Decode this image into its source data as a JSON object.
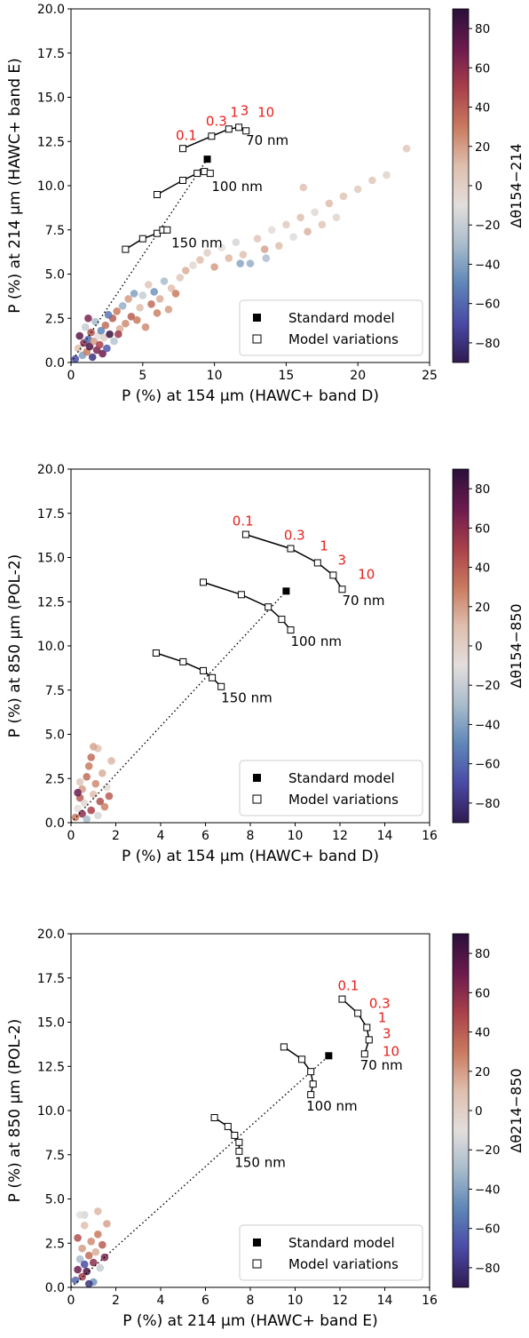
{
  "colorbar": {
    "ticks": [
      "80",
      "60",
      "40",
      "20",
      "0",
      "−20",
      "−40",
      "−60",
      "−80"
    ],
    "range": [
      -90,
      90
    ],
    "stops": [
      "#2a0f3a",
      "#6b1a4e",
      "#a8404a",
      "#c97a5e",
      "#dfbfae",
      "#e3dedc",
      "#a8bccc",
      "#5e86b8",
      "#4a4aa6",
      "#2f1a50"
    ]
  },
  "legend": {
    "standard": "Standard model",
    "variations": "Model variations"
  },
  "chart_data": [
    {
      "type": "scatter",
      "xlabel": "P (%) at 154 μm (HAWC+ band D)",
      "ylabel": "P (%) at 214 μm (HAWC+ band E)",
      "colorbar_label": "Δθ154−214",
      "xlim": [
        0,
        25
      ],
      "ylim": [
        0,
        20
      ],
      "xticks": [
        0,
        5,
        10,
        15,
        20,
        25
      ],
      "xtick_labels": [
        "0",
        "5",
        "10",
        "15",
        "20",
        "25"
      ],
      "yticks": [
        0,
        2.5,
        5,
        7.5,
        10,
        12.5,
        15,
        17.5,
        20
      ],
      "ytick_labels": [
        "0.0",
        "2.5",
        "5.0",
        "7.5",
        "10.0",
        "12.5",
        "15.0",
        "17.5",
        "20.0"
      ],
      "standard_model": [
        9.5,
        11.5
      ],
      "dotted_line": [
        [
          0,
          0
        ],
        [
          9.5,
          11.5
        ]
      ],
      "model_curves": [
        {
          "size": "70 nm",
          "points": [
            [
              7.8,
              12.1
            ],
            [
              9.8,
              12.8
            ],
            [
              11.0,
              13.2
            ],
            [
              11.7,
              13.3
            ],
            [
              12.2,
              13.1
            ]
          ]
        },
        {
          "size": "100 nm",
          "points": [
            [
              6.0,
              9.5
            ],
            [
              7.8,
              10.3
            ],
            [
              8.8,
              10.7
            ],
            [
              9.3,
              10.8
            ],
            [
              9.7,
              10.7
            ]
          ]
        },
        {
          "size": "150 nm",
          "points": [
            [
              3.8,
              6.4
            ],
            [
              5.0,
              7.0
            ],
            [
              6.0,
              7.3
            ],
            [
              6.4,
              7.5
            ],
            [
              6.7,
              7.5
            ]
          ]
        }
      ],
      "size_label_positions": [
        [
          12.2,
          12.3
        ],
        [
          9.8,
          9.7
        ],
        [
          7.0,
          6.5
        ]
      ],
      "grain_labels": [
        {
          "text": "0.1",
          "x": 7.3,
          "y": 12.6
        },
        {
          "text": "0.3",
          "x": 9.4,
          "y": 13.4
        },
        {
          "text": "1",
          "x": 11.1,
          "y": 13.9
        },
        {
          "text": "3",
          "x": 11.8,
          "y": 14.0
        },
        {
          "text": "10",
          "x": 13.0,
          "y": 13.9
        }
      ],
      "observations": [
        [
          0.3,
          0.2,
          -70
        ],
        [
          0.5,
          0.8,
          10
        ],
        [
          0.6,
          1.5,
          75
        ],
        [
          0.8,
          0.4,
          -40
        ],
        [
          0.9,
          1.1,
          60
        ],
        [
          1.0,
          2.0,
          -20
        ],
        [
          1.1,
          0.6,
          30
        ],
        [
          1.2,
          1.3,
          -60
        ],
        [
          1.3,
          0.9,
          80
        ],
        [
          1.4,
          1.7,
          45
        ],
        [
          1.5,
          0.3,
          -80
        ],
        [
          1.6,
          1.2,
          20
        ],
        [
          1.7,
          2.3,
          -30
        ],
        [
          1.8,
          0.7,
          65
        ],
        [
          1.9,
          1.5,
          -10
        ],
        [
          2.0,
          1.0,
          50
        ],
        [
          2.1,
          1.8,
          -50
        ],
        [
          2.2,
          0.5,
          70
        ],
        [
          2.3,
          1.4,
          0
        ],
        [
          2.4,
          2.1,
          35
        ],
        [
          2.5,
          0.8,
          -65
        ],
        [
          2.7,
          1.6,
          85
        ],
        [
          2.9,
          2.5,
          40
        ],
        [
          3.0,
          1.2,
          -25
        ],
        [
          3.2,
          2.9,
          30
        ],
        [
          3.4,
          1.9,
          15
        ],
        [
          3.6,
          3.2,
          -35
        ],
        [
          3.8,
          2.2,
          25
        ],
        [
          4.0,
          3.6,
          20
        ],
        [
          4.2,
          2.6,
          40
        ],
        [
          4.4,
          3.9,
          -40
        ],
        [
          4.6,
          2.4,
          30
        ],
        [
          4.8,
          3.1,
          10
        ],
        [
          5.0,
          3.8,
          -20
        ],
        [
          5.2,
          2.0,
          25
        ],
        [
          5.4,
          4.4,
          5
        ],
        [
          5.6,
          3.3,
          35
        ],
        [
          5.8,
          4.0,
          -45
        ],
        [
          6.0,
          2.8,
          28
        ],
        [
          6.2,
          3.6,
          15
        ],
        [
          6.5,
          4.6,
          -30
        ],
        [
          6.8,
          3.0,
          20
        ],
        [
          7.0,
          4.2,
          10
        ],
        [
          7.3,
          3.9,
          30
        ],
        [
          7.6,
          4.8,
          5
        ],
        [
          8.0,
          5.2,
          15
        ],
        [
          8.5,
          5.5,
          -5
        ],
        [
          9.0,
          5.8,
          10
        ],
        [
          9.5,
          6.2,
          0
        ],
        [
          10.0,
          5.4,
          20
        ],
        [
          10.5,
          6.5,
          -10
        ],
        [
          11.0,
          5.9,
          12
        ],
        [
          11.5,
          6.8,
          -15
        ],
        [
          12.0,
          6.1,
          8
        ],
        [
          12.5,
          5.6,
          -35
        ],
        [
          13.0,
          7.0,
          5
        ],
        [
          13.5,
          6.4,
          18
        ],
        [
          14.0,
          7.5,
          -8
        ],
        [
          14.5,
          6.6,
          10
        ],
        [
          15.0,
          7.8,
          3
        ],
        [
          15.5,
          7.1,
          -12
        ],
        [
          16.0,
          8.2,
          9
        ],
        [
          16.5,
          7.4,
          14
        ],
        [
          17.0,
          8.5,
          -6
        ],
        [
          17.5,
          7.8,
          6
        ],
        [
          18.0,
          9.0,
          11
        ],
        [
          18.5,
          8.2,
          -4
        ],
        [
          19.0,
          9.4,
          7
        ],
        [
          20.0,
          9.8,
          2
        ],
        [
          21.0,
          10.3,
          5
        ],
        [
          22.0,
          10.6,
          -2
        ],
        [
          23.4,
          12.1,
          4
        ],
        [
          16.2,
          9.9,
          8
        ],
        [
          13.6,
          5.9,
          -28
        ],
        [
          11.8,
          5.6,
          -38
        ],
        [
          3.3,
          1.6,
          55
        ],
        [
          2.6,
          2.7,
          -55
        ],
        [
          1.2,
          2.5,
          65
        ]
      ]
    },
    {
      "type": "scatter",
      "xlabel": "P (%) at 154 μm (HAWC+ band D)",
      "ylabel": "P (%) at 850 μm (POL-2)",
      "colorbar_label": "Δθ154−850",
      "xlim": [
        0,
        16
      ],
      "ylim": [
        0,
        20
      ],
      "xticks": [
        0,
        2,
        4,
        6,
        8,
        10,
        12,
        14,
        16
      ],
      "xtick_labels": [
        "0",
        "2",
        "4",
        "6",
        "8",
        "10",
        "12",
        "14",
        "16"
      ],
      "yticks": [
        0,
        2.5,
        5,
        7.5,
        10,
        12.5,
        15,
        17.5,
        20
      ],
      "ytick_labels": [
        "0.0",
        "2.5",
        "5.0",
        "7.5",
        "10.0",
        "12.5",
        "15.0",
        "17.5",
        "20.0"
      ],
      "standard_model": [
        9.6,
        13.1
      ],
      "dotted_line": [
        [
          0,
          0
        ],
        [
          9.6,
          13.1
        ]
      ],
      "model_curves": [
        {
          "size": "70 nm",
          "points": [
            [
              7.8,
              16.3
            ],
            [
              9.8,
              15.5
            ],
            [
              11.0,
              14.7
            ],
            [
              11.7,
              14.0
            ],
            [
              12.1,
              13.2
            ]
          ]
        },
        {
          "size": "100 nm",
          "points": [
            [
              5.9,
              13.6
            ],
            [
              7.6,
              12.9
            ],
            [
              8.8,
              12.2
            ],
            [
              9.4,
              11.5
            ],
            [
              9.8,
              10.9
            ]
          ]
        },
        {
          "size": "150 nm",
          "points": [
            [
              3.8,
              9.6
            ],
            [
              5.0,
              9.1
            ],
            [
              5.9,
              8.6
            ],
            [
              6.3,
              8.2
            ],
            [
              6.7,
              7.7
            ]
          ]
        }
      ],
      "size_label_positions": [
        [
          12.1,
          12.3
        ],
        [
          9.8,
          10.0
        ],
        [
          6.7,
          6.8
        ]
      ],
      "grain_labels": [
        {
          "text": "0.1",
          "x": 7.2,
          "y": 16.8
        },
        {
          "text": "0.3",
          "x": 9.5,
          "y": 16.0
        },
        {
          "text": "1",
          "x": 11.1,
          "y": 15.4
        },
        {
          "text": "3",
          "x": 11.9,
          "y": 14.6
        },
        {
          "text": "10",
          "x": 12.8,
          "y": 13.8
        }
      ],
      "observations": [
        [
          0.2,
          0.3,
          30
        ],
        [
          0.3,
          0.8,
          -10
        ],
        [
          0.4,
          1.4,
          40
        ],
        [
          0.5,
          0.5,
          60
        ],
        [
          0.5,
          1.9,
          20
        ],
        [
          0.6,
          1.1,
          -5
        ],
        [
          0.7,
          2.6,
          35
        ],
        [
          0.8,
          3.2,
          30
        ],
        [
          0.9,
          0.7,
          50
        ],
        [
          0.9,
          3.7,
          35
        ],
        [
          1.0,
          1.6,
          10
        ],
        [
          1.1,
          2.2,
          25
        ],
        [
          1.2,
          0.4,
          -15
        ],
        [
          1.2,
          4.2,
          8
        ],
        [
          1.3,
          1.2,
          45
        ],
        [
          1.4,
          2.8,
          15
        ],
        [
          1.5,
          0.9,
          28
        ],
        [
          1.6,
          2.0,
          -8
        ],
        [
          1.7,
          1.5,
          40
        ],
        [
          1.8,
          3.5,
          12
        ],
        [
          0.3,
          1.7,
          70
        ],
        [
          0.7,
          0.2,
          -30
        ],
        [
          0.4,
          2.3,
          5
        ],
        [
          1.0,
          4.3,
          18
        ]
      ]
    },
    {
      "type": "scatter",
      "xlabel": "P (%) at 214 μm (HAWC+ band E)",
      "ylabel": "P (%) at 850 μm (POL-2)",
      "colorbar_label": "Δθ214−850",
      "xlim": [
        0,
        16
      ],
      "ylim": [
        0,
        20
      ],
      "xticks": [
        0,
        2,
        4,
        6,
        8,
        10,
        12,
        14,
        16
      ],
      "xtick_labels": [
        "0",
        "2",
        "4",
        "6",
        "8",
        "10",
        "12",
        "14",
        "16"
      ],
      "yticks": [
        0,
        2.5,
        5,
        7.5,
        10,
        12.5,
        15,
        17.5,
        20
      ],
      "ytick_labels": [
        "0.0",
        "2.5",
        "5.0",
        "7.5",
        "10.0",
        "12.5",
        "15.0",
        "17.5",
        "20.0"
      ],
      "standard_model": [
        11.5,
        13.1
      ],
      "dotted_line": [
        [
          0,
          0
        ],
        [
          11.5,
          13.1
        ]
      ],
      "model_curves": [
        {
          "size": "70 nm",
          "points": [
            [
              12.1,
              16.3
            ],
            [
              12.8,
              15.5
            ],
            [
              13.2,
              14.7
            ],
            [
              13.3,
              14.0
            ],
            [
              13.1,
              13.2
            ]
          ]
        },
        {
          "size": "100 nm",
          "points": [
            [
              9.5,
              13.6
            ],
            [
              10.3,
              12.9
            ],
            [
              10.7,
              12.2
            ],
            [
              10.8,
              11.5
            ],
            [
              10.7,
              10.9
            ]
          ]
        },
        {
          "size": "150 nm",
          "points": [
            [
              6.4,
              9.6
            ],
            [
              7.0,
              9.1
            ],
            [
              7.3,
              8.6
            ],
            [
              7.5,
              8.2
            ],
            [
              7.5,
              7.7
            ]
          ]
        }
      ],
      "size_label_positions": [
        [
          12.9,
          12.3
        ],
        [
          10.5,
          10.0
        ],
        [
          7.3,
          6.8
        ]
      ],
      "grain_labels": [
        {
          "text": "0.1",
          "x": 11.9,
          "y": 16.8
        },
        {
          "text": "0.3",
          "x": 13.3,
          "y": 15.8
        },
        {
          "text": "1",
          "x": 13.7,
          "y": 15.0
        },
        {
          "text": "3",
          "x": 13.9,
          "y": 14.1
        },
        {
          "text": "10",
          "x": 13.9,
          "y": 13.1
        }
      ],
      "observations": [
        [
          0.2,
          0.4,
          -60
        ],
        [
          0.3,
          1.0,
          70
        ],
        [
          0.4,
          1.6,
          -30
        ],
        [
          0.5,
          0.6,
          50
        ],
        [
          0.5,
          2.2,
          20
        ],
        [
          0.6,
          1.3,
          -70
        ],
        [
          0.6,
          3.5,
          10
        ],
        [
          0.6,
          4.1,
          -15
        ],
        [
          0.7,
          0.9,
          80
        ],
        [
          0.8,
          1.8,
          35
        ],
        [
          0.9,
          2.6,
          25
        ],
        [
          1.0,
          0.3,
          -45
        ],
        [
          1.0,
          1.4,
          60
        ],
        [
          1.1,
          2.0,
          15
        ],
        [
          1.2,
          3.0,
          30
        ],
        [
          1.2,
          4.3,
          12
        ],
        [
          1.3,
          1.1,
          -20
        ],
        [
          1.4,
          2.4,
          40
        ],
        [
          1.5,
          1.7,
          65
        ],
        [
          1.6,
          3.6,
          18
        ],
        [
          0.4,
          4.1,
          -10
        ],
        [
          0.8,
          0.2,
          -80
        ],
        [
          0.3,
          2.8,
          45
        ]
      ]
    }
  ]
}
